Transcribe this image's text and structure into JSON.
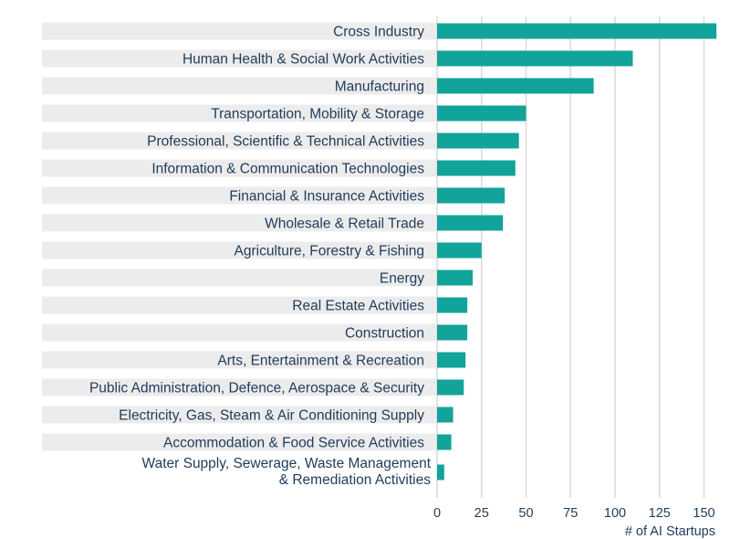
{
  "chart_data": {
    "type": "bar",
    "orientation": "horizontal",
    "title": "",
    "xlabel": "# of AI Startups",
    "ylabel": "",
    "xlim": [
      0,
      160
    ],
    "xticks": [
      0,
      25,
      50,
      75,
      100,
      125,
      150
    ],
    "grid": "vertical",
    "colors": {
      "bar": "#12a39a",
      "label_band": "#ececec",
      "grid": "#d9d9d9",
      "text": "#1f3b5a"
    },
    "categories": [
      "Cross Industry",
      "Human Health & Social Work Activities",
      "Manufacturing",
      "Transportation, Mobility & Storage",
      "Professional, Scientific & Technical Activities",
      "Information & Communication Technologies",
      "Financial & Insurance Activities",
      "Wholesale & Retail Trade",
      "Agriculture, Forestry & Fishing",
      "Energy",
      "Real Estate Activities",
      "Construction",
      "Arts, Entertainment & Recreation",
      "Public Administration, Defence, Aerospace & Security",
      "Electricity, Gas, Steam & Air Conditioning Supply",
      "Accommodation & Food Service Activities",
      "Water Supply, Sewerage, Waste Management\n& Remediation Activities"
    ],
    "values": [
      157,
      110,
      88,
      50,
      46,
      44,
      38,
      37,
      25,
      20,
      17,
      17,
      16,
      15,
      9,
      8,
      4
    ]
  }
}
